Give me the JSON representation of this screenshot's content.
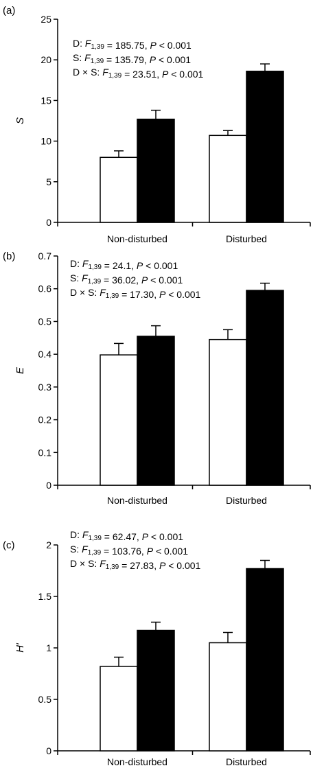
{
  "colors": {
    "treatment_open": "#ffffff",
    "treatment_filled": "#000000",
    "axis": "#000000"
  },
  "chart_data": [
    {
      "type": "bar",
      "panel": "(a)",
      "ylabel": "S",
      "ylim": [
        0,
        25
      ],
      "yticks": [
        0,
        5,
        10,
        15,
        20,
        25
      ],
      "ytick_labels": [
        "0",
        "5",
        "10",
        "15",
        "20",
        "25"
      ],
      "categories": [
        "Non-disturbed",
        "Disturbed"
      ],
      "series": [
        {
          "color": "#ffffff",
          "values": [
            8.0,
            10.7
          ],
          "errors": [
            0.8,
            0.6
          ]
        },
        {
          "color": "#000000",
          "values": [
            12.7,
            18.6
          ],
          "errors": [
            1.1,
            0.9
          ]
        }
      ],
      "stats": [
        {
          "pre": "D: ",
          "F": "F",
          "sub": "1,39",
          "mid": " = 185.75, ",
          "P": "P",
          "post": " < 0.001"
        },
        {
          "pre": "S: ",
          "F": "F",
          "sub": "1,39",
          "mid": " = 135.79, ",
          "P": "P",
          "post": " < 0.001"
        },
        {
          "pre": "D × S: ",
          "F": "F",
          "sub": "1,39",
          "mid": " = 23.51, ",
          "P": "P",
          "post": " < 0.001"
        }
      ]
    },
    {
      "type": "bar",
      "panel": "(b)",
      "ylabel": "E",
      "ylim": [
        0,
        0.7
      ],
      "yticks": [
        0,
        0.1,
        0.2,
        0.3,
        0.4,
        0.5,
        0.6,
        0.7
      ],
      "ytick_labels": [
        "0",
        "0.1",
        "0.2",
        "0.3",
        "0.4",
        "0.5",
        "0.6",
        "0.7"
      ],
      "categories": [
        "Non-disturbed",
        "Disturbed"
      ],
      "series": [
        {
          "color": "#ffffff",
          "values": [
            0.398,
            0.445
          ],
          "errors": [
            0.035,
            0.03
          ]
        },
        {
          "color": "#000000",
          "values": [
            0.455,
            0.595
          ],
          "errors": [
            0.032,
            0.022
          ]
        }
      ],
      "stats": [
        {
          "pre": "D: ",
          "F": "F",
          "sub": "1,39",
          "mid": " = 24.1, ",
          "P": "P",
          "post": " < 0.001"
        },
        {
          "pre": "S: ",
          "F": "F",
          "sub": "1,39",
          "mid": " = 36.02, ",
          "P": "P",
          "post": " < 0.001"
        },
        {
          "pre": "D × S: ",
          "F": "F",
          "sub": "1,39",
          "mid": " = 17.30, ",
          "P": "P",
          "post": " < 0.001"
        }
      ]
    },
    {
      "type": "bar",
      "panel": "(c)",
      "ylabel": "H′",
      "ylim": [
        0,
        2
      ],
      "yticks": [
        0,
        0.5,
        1,
        1.5,
        2
      ],
      "ytick_labels": [
        "0",
        "0.5",
        "1",
        "1.5",
        "2"
      ],
      "categories": [
        "Non-disturbed",
        "Disturbed"
      ],
      "series": [
        {
          "color": "#ffffff",
          "values": [
            0.82,
            1.05
          ],
          "errors": [
            0.09,
            0.1
          ]
        },
        {
          "color": "#000000",
          "values": [
            1.17,
            1.77
          ],
          "errors": [
            0.08,
            0.08
          ]
        }
      ],
      "stats": [
        {
          "pre": "D: ",
          "F": "F",
          "sub": "1,39",
          "mid": " = 62.47, ",
          "P": "P",
          "post": " < 0.001"
        },
        {
          "pre": "S: ",
          "F": "F",
          "sub": "1,39",
          "mid": " = 103.76, ",
          "P": "P",
          "post": " < 0.001"
        },
        {
          "pre": "D × S: ",
          "F": "F",
          "sub": "1,39",
          "mid": " = 27.83, ",
          "P": "P",
          "post": " < 0.001"
        }
      ]
    }
  ]
}
